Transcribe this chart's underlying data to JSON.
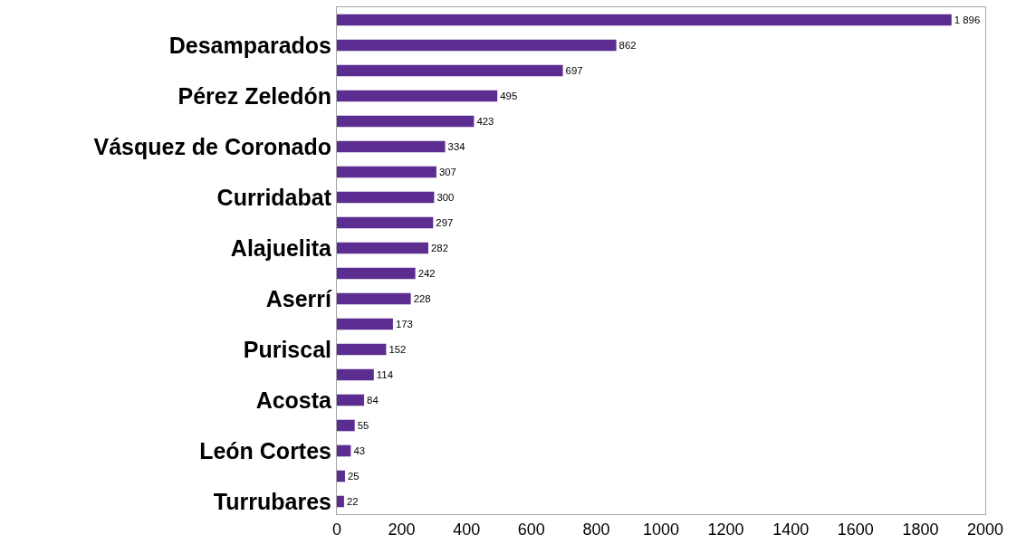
{
  "chart_data": {
    "type": "bar",
    "orientation": "horizontal",
    "color": "#5b2d90",
    "categories": [
      null,
      "Desamparados",
      null,
      "Pérez Zeledón",
      null,
      "Vásquez de Coronado",
      null,
      "Curridabat",
      null,
      "Alajuelita",
      null,
      "Aserrí",
      null,
      "Puriscal",
      null,
      "Acosta",
      null,
      "León Cortes",
      null,
      "Turrubares"
    ],
    "values": [
      1896,
      862,
      697,
      495,
      423,
      334,
      307,
      300,
      297,
      282,
      242,
      228,
      173,
      152,
      114,
      84,
      55,
      43,
      25,
      22
    ],
    "value_labels": [
      "1 896",
      "862",
      "697",
      "495",
      "423",
      "334",
      "307",
      "300",
      "297",
      "282",
      "242",
      "228",
      "173",
      "152",
      "114",
      "84",
      "55",
      "43",
      "25",
      "22"
    ],
    "xlim": [
      0,
      2000
    ],
    "xticks": [
      0,
      200,
      400,
      600,
      800,
      1000,
      1200,
      1400,
      1600,
      1800,
      2000
    ],
    "grid": false
  }
}
